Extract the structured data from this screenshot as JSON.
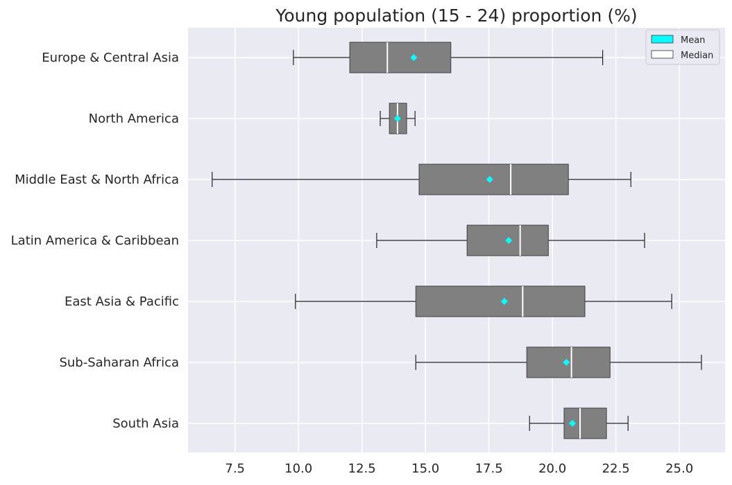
{
  "chart_data": {
    "type": "boxplot",
    "orientation": "horizontal",
    "title": "Young population (15 - 24) proportion (%)",
    "xlabel": "",
    "ylabel": "",
    "xlim": [
      5.65,
      26.8
    ],
    "xticks": [
      "7.5",
      "10.0",
      "12.5",
      "15.0",
      "17.5",
      "20.0",
      "22.5",
      "25.0"
    ],
    "grid": true,
    "legend": {
      "position": "top-right",
      "entries": [
        {
          "label": "Mean",
          "color": "#00ffff"
        },
        {
          "label": "Median",
          "color": "#ffffff"
        }
      ]
    },
    "colors": {
      "box": "#808080",
      "mean": "#00ffff",
      "median": "#ffffff",
      "background": "#eaeaf2"
    },
    "categories": [
      "Europe & Central Asia",
      "North America",
      "Middle East & North Africa",
      "Latin America & Caribbean",
      "East Asia & Pacific",
      "Sub-Saharan Africa",
      "South Asia"
    ],
    "boxes": [
      {
        "whisker_low": 9.8,
        "q1": 12.02,
        "median": 13.5,
        "mean": 14.54,
        "q3": 16.0,
        "whisker_high": 21.98
      },
      {
        "whisker_low": 13.22,
        "q1": 13.58,
        "median": 13.9,
        "mean": 13.9,
        "q3": 14.26,
        "whisker_high": 14.59
      },
      {
        "whisker_low": 6.6,
        "q1": 14.75,
        "median": 18.36,
        "mean": 17.53,
        "q3": 20.63,
        "whisker_high": 23.09
      },
      {
        "whisker_low": 13.08,
        "q1": 16.64,
        "median": 18.73,
        "mean": 18.28,
        "q3": 19.84,
        "whisker_high": 23.63
      },
      {
        "whisker_low": 9.88,
        "q1": 14.62,
        "median": 18.83,
        "mean": 18.11,
        "q3": 21.28,
        "whisker_high": 24.7
      },
      {
        "whisker_low": 14.62,
        "q1": 18.99,
        "median": 20.75,
        "mean": 20.55,
        "q3": 22.27,
        "whisker_high": 25.87
      },
      {
        "whisker_low": 19.1,
        "q1": 20.46,
        "median": 21.09,
        "mean": 20.79,
        "q3": 22.13,
        "whisker_high": 22.98
      }
    ]
  }
}
